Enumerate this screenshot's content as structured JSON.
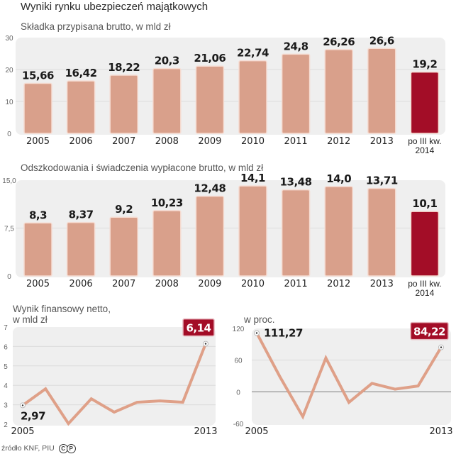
{
  "title": "Wyniki rynku ubezpieczeń majątkowych",
  "source": "źródło KNF, PIU",
  "logo": {
    "letters": [
      "C",
      "P"
    ],
    "icon": "cp-logo-icon"
  },
  "colors": {
    "bar": "#d9a08b",
    "bar_highlight": "#a30d27",
    "line": "#dfa088",
    "panel": "#efefef",
    "grid": "#dcdcdc",
    "zero_line": "#888888",
    "callout": "#a30d27"
  },
  "chart_data": [
    {
      "type": "bar",
      "title": "Składka przypisana brutto, w mld zł",
      "categories": [
        "2005",
        "2006",
        "2007",
        "2008",
        "2009",
        "2010",
        "2011",
        "2012",
        "2013",
        "po III kw. 2014"
      ],
      "category_lines": [
        [
          "2005"
        ],
        [
          "2006"
        ],
        [
          "2007"
        ],
        [
          "2008"
        ],
        [
          "2009"
        ],
        [
          "2010"
        ],
        [
          "2011"
        ],
        [
          "2012"
        ],
        [
          "2013"
        ],
        [
          "po III kw.",
          "2014"
        ]
      ],
      "values": [
        15.66,
        16.42,
        18.22,
        20.3,
        21.06,
        22.74,
        24.8,
        26.26,
        26.6,
        19.2
      ],
      "value_labels": [
        "15,66",
        "16,42",
        "18,22",
        "20,3",
        "21,06",
        "22,74",
        "24,8",
        "26,26",
        "26,6",
        "19,2"
      ],
      "highlight_index": 9,
      "yticks": [
        0,
        10,
        20,
        30
      ],
      "ytick_labels": [
        "0",
        "10",
        "20",
        "30"
      ],
      "ylim": [
        0,
        30
      ],
      "grid": true,
      "xlabel": "",
      "ylabel": ""
    },
    {
      "type": "bar",
      "title": "Odszkodowania i świadczenia wypłacone brutto, w mld zł",
      "categories": [
        "2005",
        "2006",
        "2007",
        "2008",
        "2009",
        "2010",
        "2011",
        "2012",
        "2013",
        "po III kw. 2014"
      ],
      "category_lines": [
        [
          "2005"
        ],
        [
          "2006"
        ],
        [
          "2007"
        ],
        [
          "2008"
        ],
        [
          "2009"
        ],
        [
          "2010"
        ],
        [
          "2011"
        ],
        [
          "2012"
        ],
        [
          "2013"
        ],
        [
          "po III kw.",
          "2014"
        ]
      ],
      "values": [
        8.3,
        8.37,
        9.2,
        10.23,
        12.48,
        14.1,
        13.48,
        14.0,
        13.71,
        10.1
      ],
      "value_labels": [
        "8,3",
        "8,37",
        "9,2",
        "10,23",
        "12,48",
        "14,1",
        "13,48",
        "14,0",
        "13,71",
        "10,1"
      ],
      "highlight_index": 9,
      "yticks": [
        0,
        7.5,
        15
      ],
      "ytick_labels": [
        "0",
        "7,5",
        "15,0"
      ],
      "ylim": [
        0,
        15
      ],
      "grid": true,
      "xlabel": "",
      "ylabel": ""
    },
    {
      "type": "line",
      "title": "Wynik finansowy netto, w mld zł",
      "title_lines": [
        "Wynik finansowy netto,",
        "w mld zł"
      ],
      "x": [
        "2005",
        "2006",
        "2007",
        "2008",
        "2009",
        "2010",
        "2011",
        "2012",
        "2013"
      ],
      "x_tick_labels": [
        "2005",
        "2013"
      ],
      "values": [
        2.97,
        3.82,
        2.03,
        3.31,
        2.62,
        3.13,
        3.2,
        3.13,
        6.14
      ],
      "start_label": "2,97",
      "end_label": "6,14",
      "yticks": [
        2,
        3,
        4,
        5,
        6,
        7
      ],
      "ytick_labels": [
        "2",
        "3",
        "4",
        "5",
        "6",
        "7"
      ],
      "ylim": [
        2,
        7
      ],
      "grid": true
    },
    {
      "type": "line",
      "title": "w proc.",
      "title_lines": [
        "w proc."
      ],
      "x": [
        "2005",
        "2006",
        "2007",
        "2008",
        "2009",
        "2010",
        "2011",
        "2012",
        "2013"
      ],
      "x_tick_labels": [
        "2005",
        "2013"
      ],
      "values": [
        111.27,
        29,
        -47,
        64,
        -20,
        16,
        5,
        11,
        84.22
      ],
      "start_label": "111,27",
      "end_label": "84,22",
      "yticks": [
        -60,
        0,
        60,
        120
      ],
      "ytick_labels": [
        "-60",
        "0",
        "60",
        "120"
      ],
      "ylim": [
        -60,
        120
      ],
      "grid": true,
      "zero_line": true
    }
  ]
}
